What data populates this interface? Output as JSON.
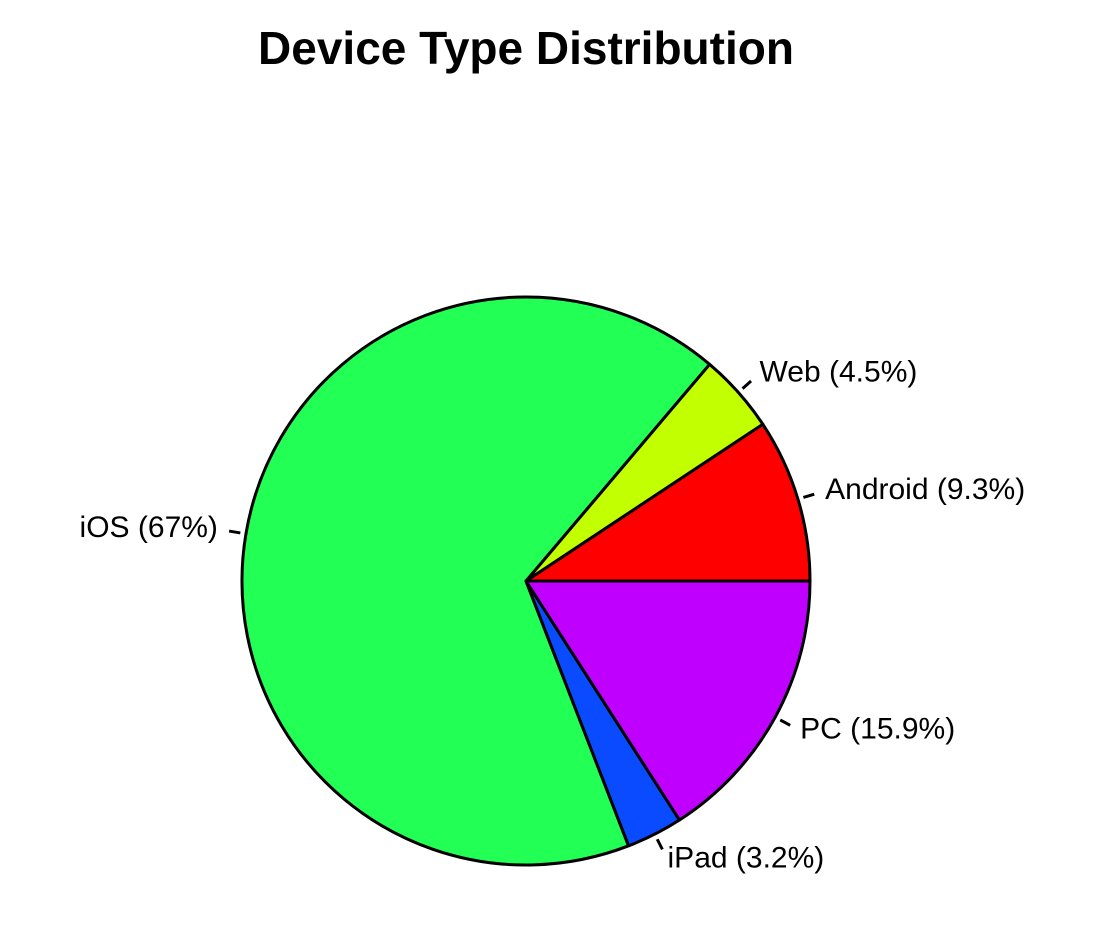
{
  "chart_data": {
    "type": "pie",
    "title": "Device Type Distribution",
    "start_angle_deg": 0,
    "direction": "counterclockwise",
    "slices": [
      {
        "label": "Android (9.3%)",
        "value": 9.3,
        "color": "#FF0000"
      },
      {
        "label": "Web (4.5%)",
        "value": 4.5,
        "color": "#C2FF00"
      },
      {
        "label": "iOS (67%)",
        "value": 67.0,
        "color": "#22FF55"
      },
      {
        "label": "iPad (3.2%)",
        "value": 3.2,
        "color": "#0A4BFF"
      },
      {
        "label": "PC (15.9%)",
        "value": 15.9,
        "color": "#C000FF"
      }
    ]
  }
}
